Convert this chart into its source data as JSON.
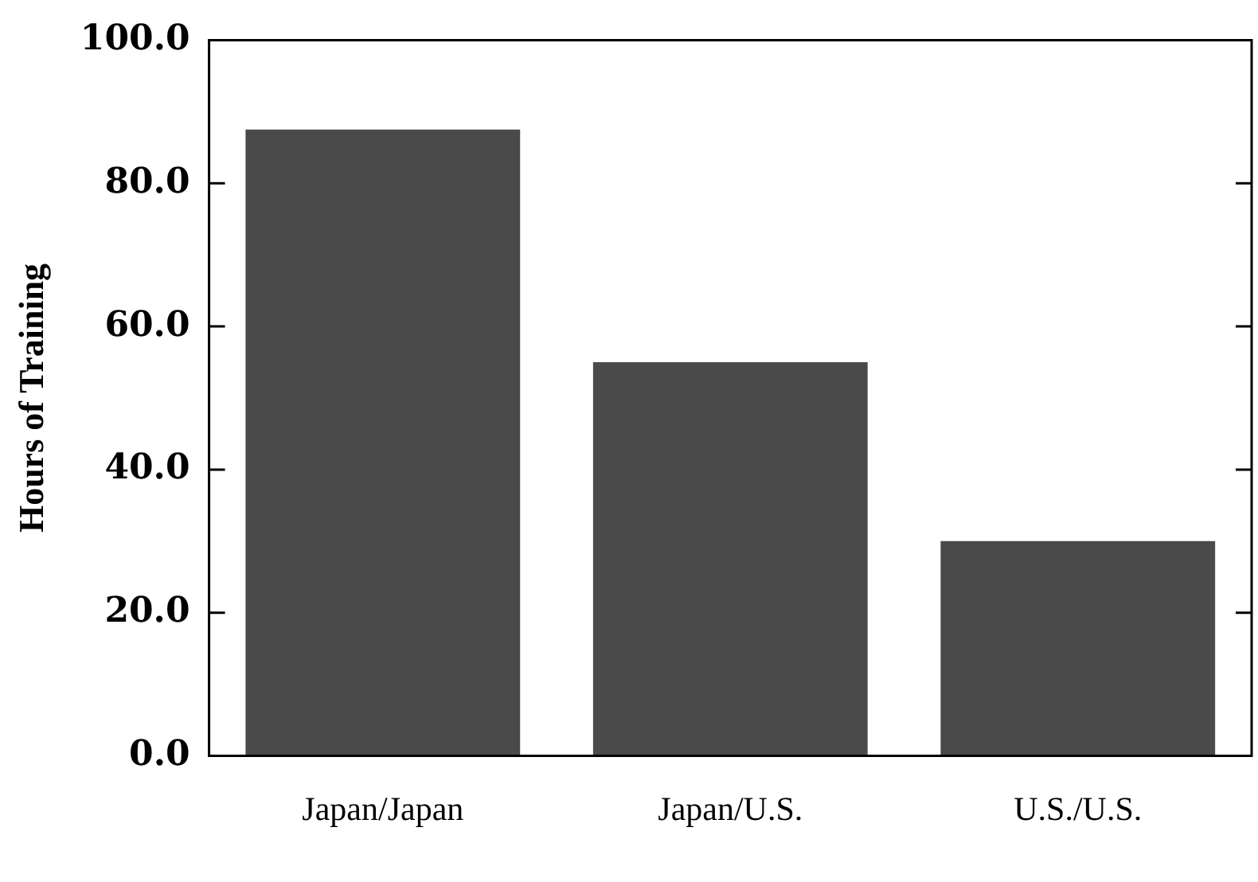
{
  "chart_data": {
    "type": "bar",
    "ylabel": "Hours of Training",
    "categories": [
      "Japan/Japan",
      "Japan/U.S.",
      "U.S./U.S."
    ],
    "values": [
      87.5,
      55,
      30
    ],
    "color": "#4a4a4a",
    "ylim": [
      0,
      100
    ],
    "yticks": [
      {
        "value": 0,
        "label": "0.0"
      },
      {
        "value": 20,
        "label": "20.0"
      },
      {
        "value": 40,
        "label": "40.0"
      },
      {
        "value": 60,
        "label": "60.0"
      },
      {
        "value": 80,
        "label": "80.0"
      },
      {
        "value": 100,
        "label": "100.0"
      }
    ],
    "grid": false,
    "legend": false
  }
}
